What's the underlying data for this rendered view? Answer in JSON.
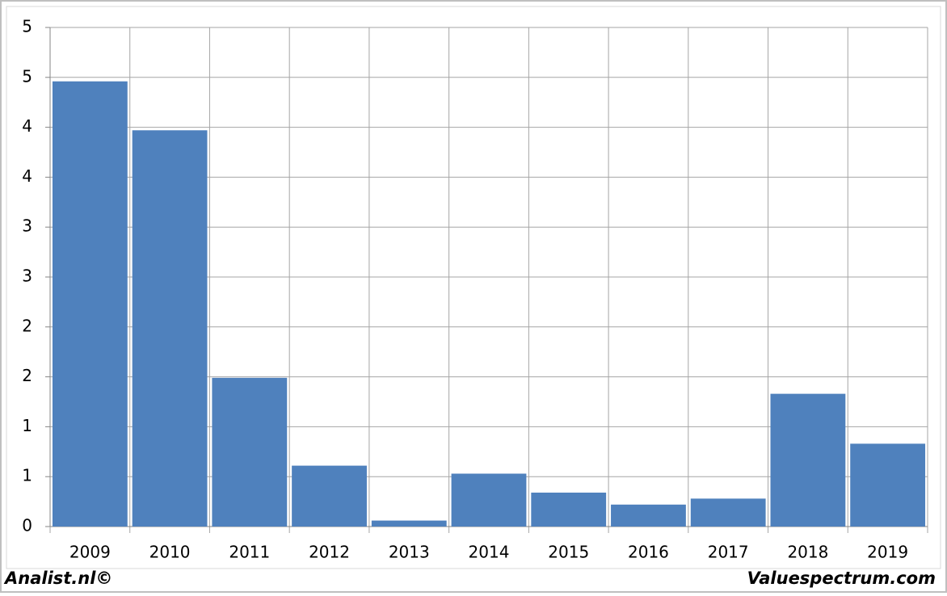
{
  "chart_data": {
    "type": "bar",
    "categories": [
      "2009",
      "2010",
      "2011",
      "2012",
      "2013",
      "2014",
      "2015",
      "2016",
      "2017",
      "2018",
      "2019"
    ],
    "values": [
      4.46,
      3.97,
      1.49,
      0.61,
      0.06,
      0.53,
      0.34,
      0.22,
      0.28,
      1.33,
      0.83
    ],
    "color": "#4f81bd",
    "ylim": [
      0,
      5
    ],
    "yticks": [
      0,
      {
        "value": 0.5,
        "label": "1"
      },
      {
        "value": 1,
        "label": "1"
      },
      {
        "value": 1.5,
        "label": "2"
      },
      {
        "value": 2,
        "label": "2"
      },
      {
        "value": 2.5,
        "label": "3"
      },
      {
        "value": 3,
        "label": "3"
      },
      {
        "value": 3.5,
        "label": "4"
      },
      {
        "value": 4,
        "label": "4"
      },
      {
        "value": 4.5,
        "label": "5"
      },
      {
        "value": 5,
        "label": "5"
      }
    ],
    "grid": true,
    "footer_left": "Analist.nl©",
    "footer_right": "Valuespectrum.com"
  }
}
